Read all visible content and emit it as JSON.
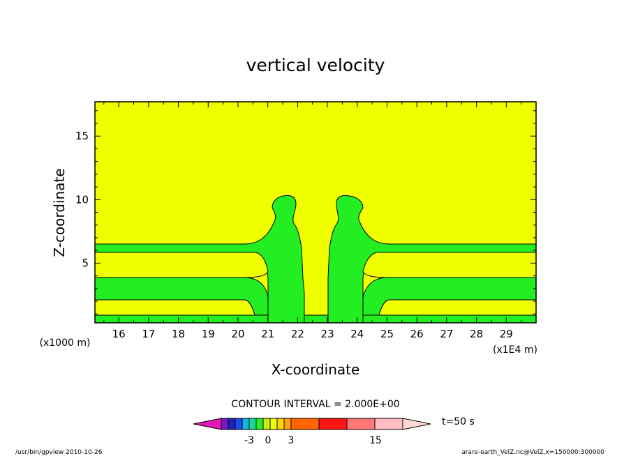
{
  "chart_data": {
    "type": "contour",
    "title": "vertical velocity",
    "xlabel": "X-coordinate",
    "ylabel": "Z-coordinate",
    "x_units": "(x1E4 m)",
    "y_units": "(x1000 m)",
    "xlim": [
      15.2,
      30.0
    ],
    "ylim": [
      0.3,
      17.7
    ],
    "x_ticks": [
      16,
      17,
      18,
      19,
      20,
      21,
      22,
      23,
      24,
      25,
      26,
      27,
      28,
      29
    ],
    "y_ticks": [
      5,
      10,
      15
    ],
    "contour_interval_text": "CONTOUR INTERVAL = 2.000E+00",
    "time_label": "t=50 s",
    "colorbar": {
      "labels": [
        {
          "text": "-3",
          "value": -3
        },
        {
          "text": "0",
          "value": 0
        },
        {
          "text": "3",
          "value": 3
        },
        {
          "text": "15",
          "value": 15
        }
      ],
      "segments": [
        {
          "color": "#e619b4",
          "shape": "tri-left"
        },
        {
          "color": "#7a16c7",
          "shape": "box"
        },
        {
          "color": "#1e20b8",
          "shape": "box"
        },
        {
          "color": "#1e4fe8",
          "shape": "box"
        },
        {
          "color": "#11b5e6",
          "shape": "box"
        },
        {
          "color": "#18d99a",
          "shape": "box"
        },
        {
          "color": "#22ee22",
          "shape": "box"
        },
        {
          "color": "#c4ee10",
          "shape": "box"
        },
        {
          "color": "#f0ff00",
          "shape": "box"
        },
        {
          "color": "#ffd400",
          "shape": "box"
        },
        {
          "color": "#ffa200",
          "shape": "box"
        },
        {
          "color": "#ff6400",
          "shape": "wide"
        },
        {
          "color": "#ff1414",
          "shape": "wide"
        },
        {
          "color": "#ff7878",
          "shape": "wide"
        },
        {
          "color": "#ffbcc2",
          "shape": "wide"
        },
        {
          "color": "#ffdcd2",
          "shape": "tri-right"
        }
      ]
    },
    "colors": {
      "fill_background": "#f0ff00",
      "fill_shaded": "#22ee22"
    }
  },
  "footer": {
    "left": "/usr/bin/gpview  2010-10-26",
    "right": "arare-earth_VelZ.nc@VelZ,x=150000:300000"
  }
}
